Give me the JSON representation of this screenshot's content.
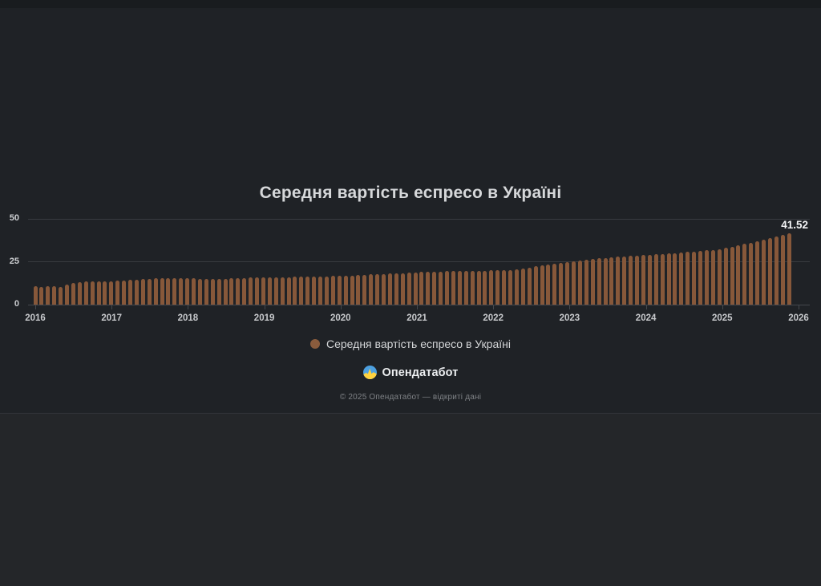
{
  "page": {
    "title": "Середня вартість еспресо в Україні",
    "last_value_label": "41.52"
  },
  "legend": {
    "label": "Середня вартість еспресо в Україні"
  },
  "footer": {
    "brand": "Опендатабот",
    "copyright": "© 2025 Опендатабот — відкриті дані"
  },
  "colors": {
    "bar": "#87583a",
    "legend_dot": "#8a5c3d",
    "background": "#1f2226",
    "gridline": "#383b40",
    "logo_blue": "#4da0e0",
    "logo_yellow": "#ffd23e"
  },
  "chart_data": {
    "type": "bar",
    "title": "Середня вартість еспресо в Україні",
    "series_name": "Середня вартість еспресо в Україні",
    "xlabel": "",
    "ylabel": "",
    "x_unit": "month",
    "start_month": "2016-01",
    "end_month": "2025-12",
    "ylim": [
      0,
      50
    ],
    "yticks": [
      0,
      25,
      50
    ],
    "x_tick_labels": [
      "2016",
      "2017",
      "2018",
      "2019",
      "2020",
      "2021",
      "2022",
      "2023",
      "2024",
      "2025",
      "2026"
    ],
    "grid": "horizontal",
    "legend_position": "bottom-center",
    "last_value": 41.52,
    "values": [
      10.8,
      10.5,
      10.9,
      10.6,
      10.3,
      11.7,
      12.8,
      13.3,
      13.6,
      13.4,
      13.7,
      13.5,
      13.6,
      13.8,
      14.1,
      14.3,
      14.6,
      14.8,
      15.0,
      15.2,
      15.3,
      15.2,
      15.4,
      15.5,
      15.4,
      15.2,
      15.0,
      14.9,
      14.8,
      14.9,
      15.0,
      15.2,
      15.4,
      15.5,
      15.7,
      15.8,
      15.9,
      16.0,
      16.1,
      16.0,
      16.1,
      16.2,
      16.3,
      16.2,
      16.3,
      16.4,
      16.5,
      16.6,
      16.7,
      16.8,
      17.0,
      17.2,
      17.5,
      17.7,
      17.8,
      17.9,
      18.0,
      18.2,
      18.4,
      18.6,
      18.8,
      19.0,
      19.1,
      19.3,
      19.3,
      19.4,
      19.4,
      19.5,
      19.5,
      19.6,
      19.7,
      19.8,
      19.9,
      20.0,
      20.1,
      20.3,
      20.6,
      21.0,
      21.6,
      22.2,
      22.8,
      23.4,
      24.0,
      24.5,
      25.0,
      25.4,
      25.8,
      26.2,
      26.6,
      27.0,
      27.3,
      27.6,
      27.9,
      28.2,
      28.5,
      28.7,
      28.9,
      29.1,
      29.3,
      29.5,
      29.8,
      30.1,
      30.4,
      30.7,
      31.0,
      31.3,
      31.6,
      31.9,
      32.3,
      33.0,
      33.8,
      34.6,
      35.4,
      36.2,
      37.0,
      37.9,
      38.8,
      39.7,
      40.6,
      41.52
    ]
  }
}
